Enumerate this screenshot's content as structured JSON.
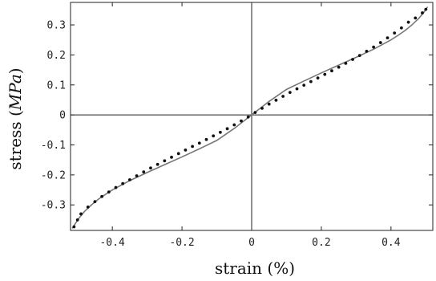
{
  "chart_data": {
    "type": "scatter",
    "title": "",
    "xlabel": "strain (%)",
    "ylabel_main": "stress (",
    "ylabel_unit": "MPa",
    "ylabel_close": ")",
    "xlim": [
      -0.52,
      0.52
    ],
    "ylim": [
      -0.385,
      0.375
    ],
    "x_ticks": [
      -0.4,
      -0.2,
      0,
      0.2,
      0.4
    ],
    "x_tick_labels": [
      "-0.4",
      "-0.2",
      "0",
      "0.2",
      "0.4"
    ],
    "y_ticks": [
      -0.3,
      -0.2,
      -0.1,
      0,
      0.1,
      0.2,
      0.3
    ],
    "y_tick_labels": [
      "-0.3",
      "-0.2",
      "-0.1",
      "0",
      "0.1",
      "0.2",
      "0.3"
    ],
    "grid": false,
    "series": [
      {
        "kind": "points",
        "x": [
          -0.51,
          -0.5,
          -0.49,
          -0.47,
          -0.45,
          -0.43,
          -0.41,
          -0.39,
          -0.37,
          -0.35,
          -0.33,
          -0.31,
          -0.29,
          -0.27,
          -0.25,
          -0.23,
          -0.21,
          -0.19,
          -0.17,
          -0.15,
          -0.13,
          -0.11,
          -0.09,
          -0.07,
          -0.05,
          -0.03,
          -0.01,
          0.01,
          0.03,
          0.05,
          0.07,
          0.09,
          0.11,
          0.13,
          0.15,
          0.17,
          0.19,
          0.21,
          0.23,
          0.25,
          0.27,
          0.29,
          0.31,
          0.33,
          0.35,
          0.37,
          0.39,
          0.41,
          0.43,
          0.45,
          0.47,
          0.49,
          0.5
        ],
        "y": [
          -0.373,
          -0.35,
          -0.33,
          -0.307,
          -0.289,
          -0.272,
          -0.257,
          -0.242,
          -0.229,
          -0.216,
          -0.203,
          -0.19,
          -0.177,
          -0.165,
          -0.153,
          -0.141,
          -0.129,
          -0.117,
          -0.105,
          -0.094,
          -0.082,
          -0.07,
          -0.058,
          -0.046,
          -0.033,
          -0.02,
          -0.007,
          0.008,
          0.022,
          0.036,
          0.049,
          0.062,
          0.075,
          0.087,
          0.099,
          0.111,
          0.123,
          0.135,
          0.147,
          0.159,
          0.172,
          0.185,
          0.198,
          0.212,
          0.226,
          0.241,
          0.257,
          0.273,
          0.29,
          0.309,
          0.323,
          0.34,
          0.352
        ]
      },
      {
        "kind": "curve",
        "x": [
          -0.515,
          -0.505,
          -0.495,
          -0.48,
          -0.46,
          -0.44,
          -0.42,
          -0.4,
          -0.35,
          -0.3,
          -0.25,
          -0.2,
          -0.15,
          -0.1,
          -0.05,
          0,
          0.05,
          0.1,
          0.15,
          0.2,
          0.25,
          0.3,
          0.35,
          0.4,
          0.42,
          0.44,
          0.46,
          0.48,
          0.495,
          0.505
        ],
        "y": [
          -0.378,
          -0.36,
          -0.343,
          -0.322,
          -0.3,
          -0.281,
          -0.265,
          -0.25,
          -0.219,
          -0.192,
          -0.166,
          -0.14,
          -0.113,
          -0.085,
          -0.045,
          0,
          0.045,
          0.085,
          0.113,
          0.14,
          0.166,
          0.192,
          0.219,
          0.25,
          0.265,
          0.281,
          0.3,
          0.322,
          0.343,
          0.36
        ]
      }
    ]
  }
}
